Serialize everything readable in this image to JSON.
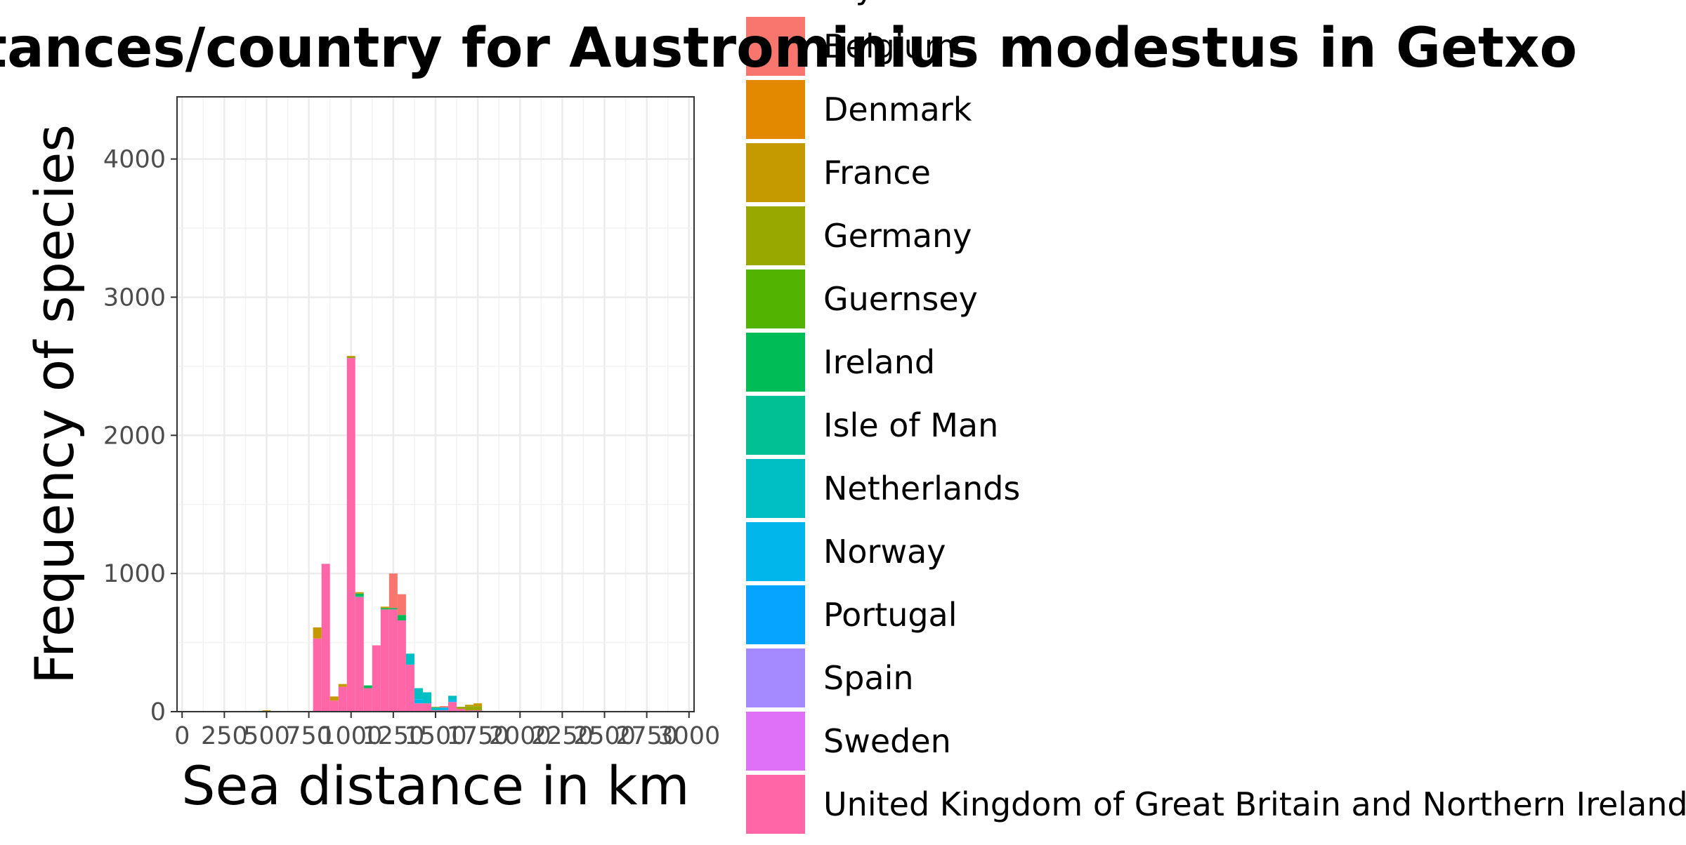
{
  "chart_data": {
    "type": "bar",
    "stacked": true,
    "title": "Sea distances/country for Austrominius modestus in Getxo",
    "xlabel": "Sea distance in km",
    "ylabel": "Frequency of species",
    "xlim": [
      -30,
      3030
    ],
    "ylim": [
      0,
      4450
    ],
    "x_ticks": [
      0,
      250,
      500,
      750,
      1000,
      1250,
      1500,
      1750,
      2000,
      2250,
      2500,
      2750,
      3000
    ],
    "x_tick_labels": [
      "0",
      "250",
      "500",
      "750",
      "1000",
      "1250",
      "1500",
      "1750",
      "2000",
      "2250",
      "2500",
      "2750",
      "3000"
    ],
    "y_ticks": [
      0,
      1000,
      2000,
      3000,
      4000
    ],
    "y_tick_labels": [
      "0",
      "1000",
      "2000",
      "3000",
      "4000"
    ],
    "bin_width": 50,
    "grid": true,
    "legend_position": "right",
    "legend_title": "Country",
    "series": [
      {
        "name": "Belgium",
        "color": "#F8766D",
        "x": [
          1250,
          1300,
          1550
        ],
        "values": [
          250,
          150,
          10
        ]
      },
      {
        "name": "Denmark",
        "color": "#E38900",
        "x": [
          1900
        ],
        "values": [
          5
        ]
      },
      {
        "name": "France",
        "color": "#C49A00",
        "x": [
          500,
          550,
          650,
          800,
          900,
          950,
          1000,
          1050,
          1200,
          1700,
          1750
        ],
        "values": [
          10,
          5,
          5,
          80,
          30,
          20,
          10,
          10,
          10,
          10,
          20
        ]
      },
      {
        "name": "Germany",
        "color": "#99A800",
        "x": [
          1500,
          1650,
          1700,
          1750
        ],
        "values": [
          5,
          15,
          30,
          30
        ]
      },
      {
        "name": "Guernsey",
        "color": "#53B400",
        "x": [
          1000
        ],
        "values": [
          5
        ]
      },
      {
        "name": "Ireland",
        "color": "#00BC56",
        "x": [
          1050,
          1100,
          1200,
          1250,
          1300
        ],
        "values": [
          20,
          20,
          10,
          10,
          40
        ]
      },
      {
        "name": "Isle of Man",
        "color": "#00C094",
        "x": [
          1050
        ],
        "values": [
          5
        ]
      },
      {
        "name": "Netherlands",
        "color": "#00BFC4",
        "x": [
          1350,
          1400,
          1450,
          1500,
          1600
        ],
        "values": [
          80,
          80,
          80,
          20,
          30
        ]
      },
      {
        "name": "Norway",
        "color": "#00B6EB",
        "x": [
          1400,
          1550,
          1600
        ],
        "values": [
          30,
          20,
          10
        ]
      },
      {
        "name": "Portugal",
        "color": "#06A4FF",
        "x": [
          1600
        ],
        "values": [
          5
        ]
      },
      {
        "name": "Spain",
        "color": "#A58AFF",
        "x": [],
        "values": []
      },
      {
        "name": "Sweden",
        "color": "#DF70F8",
        "x": [],
        "values": []
      },
      {
        "name": "United Kingdom of Great Britain and Northern Ireland",
        "color": "#FF66A8",
        "x": [
          800,
          850,
          900,
          950,
          1000,
          1050,
          1100,
          1150,
          1200,
          1250,
          1300,
          1350,
          1400,
          1450,
          1500,
          1550,
          1600,
          1650,
          1700,
          1750
        ],
        "values": [
          530,
          1070,
          80,
          180,
          2560,
          830,
          170,
          480,
          740,
          740,
          660,
          340,
          60,
          60,
          10,
          10,
          70,
          20,
          10,
          10
        ]
      }
    ]
  }
}
